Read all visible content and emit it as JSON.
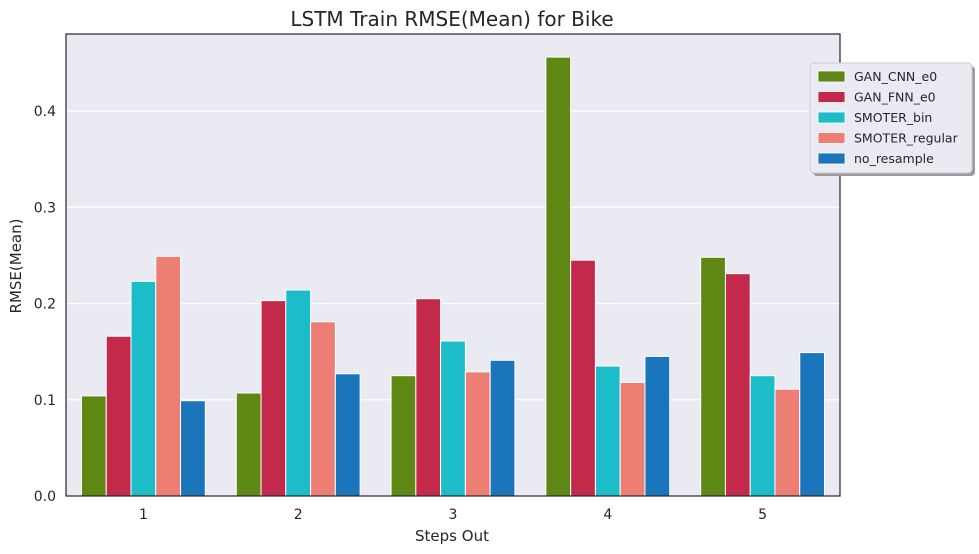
{
  "chart_data": {
    "type": "bar",
    "title": "LSTM Train RMSE(Mean) for Bike",
    "xlabel": "Steps Out",
    "ylabel": "RMSE(Mean)",
    "categories": [
      "1",
      "2",
      "3",
      "4",
      "5"
    ],
    "ylim": [
      0,
      0.48
    ],
    "yticks": [
      0.0,
      0.1,
      0.2,
      0.3,
      0.4
    ],
    "ytick_labels": [
      "0.0",
      "0.1",
      "0.2",
      "0.3",
      "0.4"
    ],
    "grid": true,
    "legend_position": "top-right",
    "series": [
      {
        "name": "GAN_CNN_e0",
        "color": "#5f8714",
        "values": [
          0.104,
          0.107,
          0.125,
          0.456,
          0.248
        ]
      },
      {
        "name": "GAN_FNN_e0",
        "color": "#c3294b",
        "values": [
          0.166,
          0.203,
          0.205,
          0.245,
          0.231
        ]
      },
      {
        "name": "SMOTER_bin",
        "color": "#1cbcc9",
        "values": [
          0.223,
          0.214,
          0.161,
          0.135,
          0.125
        ]
      },
      {
        "name": "SMOTER_regular",
        "color": "#ec7e74",
        "values": [
          0.249,
          0.181,
          0.129,
          0.118,
          0.111
        ]
      },
      {
        "name": "no_resample",
        "color": "#1a75bb",
        "values": [
          0.099,
          0.127,
          0.141,
          0.145,
          0.149
        ]
      }
    ]
  }
}
